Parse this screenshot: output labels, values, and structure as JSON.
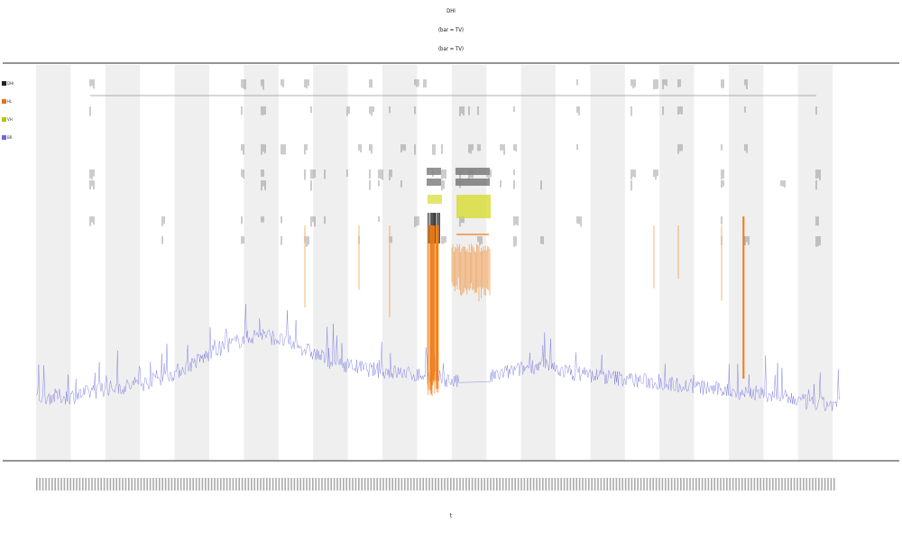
{
  "title": {
    "line1": "DHI",
    "line2": "(bar = TV)",
    "line3": "(bar = TV)"
  },
  "legend": [
    {
      "label": "DHI",
      "color": "#222222"
    },
    {
      "label": "HL",
      "color": "#e8701a"
    },
    {
      "label": "VH",
      "color": "#b9c400"
    },
    {
      "label": "BR",
      "color": "#6b6be0"
    }
  ],
  "xlabel": "t",
  "colors": {
    "background_band": "#efefef",
    "signal_blue": "#6b6be0",
    "signal_orange": "#f07a10",
    "marker_yellow": "#d6dc30",
    "marker_black": "#111111",
    "axis": "#555555"
  },
  "chart_data": {
    "type": "line",
    "title": "DHI",
    "xlabel": "t",
    "ylabel": "",
    "x_range": [
      0,
      240
    ],
    "y_range": [
      0,
      1
    ],
    "bands": 12,
    "series": [
      {
        "name": "BR",
        "color": "#6b6be0",
        "baseline": [
          [
            0,
            0.14
          ],
          [
            10,
            0.14
          ],
          [
            20,
            0.16
          ],
          [
            30,
            0.17
          ],
          [
            40,
            0.2
          ],
          [
            55,
            0.27
          ],
          [
            65,
            0.3
          ],
          [
            75,
            0.27
          ],
          [
            85,
            0.23
          ],
          [
            95,
            0.21
          ],
          [
            105,
            0.2
          ],
          [
            115,
            0.19
          ],
          [
            125,
            0.17
          ],
          [
            135,
            0.2
          ],
          [
            145,
            0.22
          ],
          [
            155,
            0.2
          ],
          [
            165,
            0.19
          ],
          [
            175,
            0.18
          ],
          [
            185,
            0.17
          ],
          [
            195,
            0.16
          ],
          [
            205,
            0.15
          ],
          [
            215,
            0.14
          ],
          [
            225,
            0.12
          ],
          [
            232,
            0.12
          ]
        ]
      },
      {
        "name": "HL",
        "color": "#f07a10",
        "block": {
          "x_start": 120,
          "x_end": 131,
          "y_top": 0.56,
          "y_bottom": 0.38
        }
      }
    ]
  }
}
